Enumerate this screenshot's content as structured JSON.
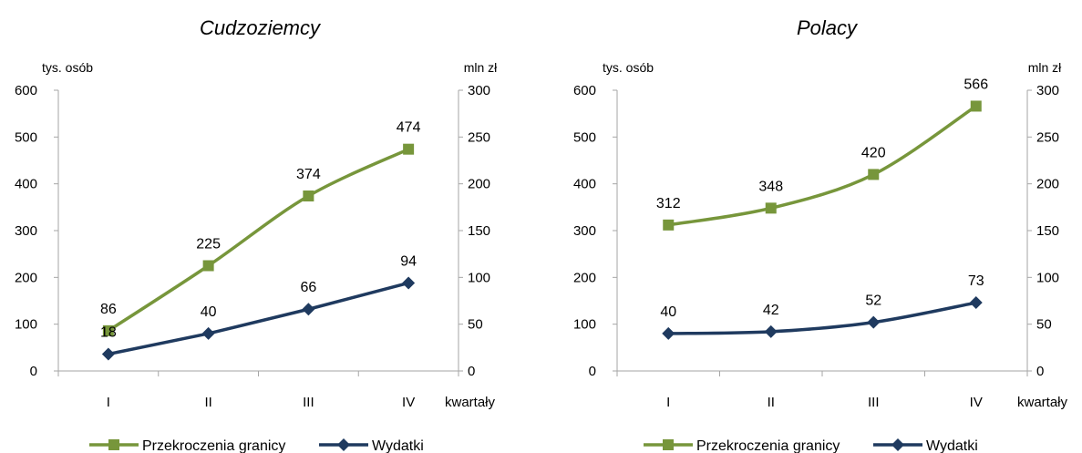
{
  "colors": {
    "border_crossings": "#77963B",
    "expenditures": "#1F3A5F",
    "axis": "#A6A6A6"
  },
  "chart_data": [
    {
      "type": "line",
      "title": "Cudzoziemcy",
      "ylabel_left": "tys. osób",
      "ylabel_right": "mln zł",
      "xlabel": "kwartały",
      "categories": [
        "I",
        "II",
        "III",
        "IV"
      ],
      "ylim_left": [
        0,
        600
      ],
      "yticks_left": [
        0,
        100,
        200,
        300,
        400,
        500,
        600
      ],
      "ylim_right": [
        0,
        300
      ],
      "yticks_right": [
        0,
        50,
        100,
        150,
        200,
        250,
        300
      ],
      "grid": false,
      "legend": "bottom",
      "series": [
        {
          "name": "Przekroczenia granicy",
          "axis": "left",
          "marker": "square",
          "smooth": true,
          "values": [
            86,
            225,
            374,
            474
          ],
          "labels": [
            "86",
            "225",
            "374",
            "474"
          ]
        },
        {
          "name": "Wydatki",
          "axis": "right",
          "marker": "diamond",
          "smooth": false,
          "values": [
            18,
            40,
            66,
            94
          ],
          "labels": [
            "18",
            "40",
            "66",
            "94"
          ]
        }
      ]
    },
    {
      "type": "line",
      "title": "Polacy",
      "ylabel_left": "tys. osób",
      "ylabel_right": "mln zł",
      "xlabel": "kwartały",
      "categories": [
        "I",
        "II",
        "III",
        "IV"
      ],
      "ylim_left": [
        0,
        600
      ],
      "yticks_left": [
        0,
        100,
        200,
        300,
        400,
        500,
        600
      ],
      "ylim_right": [
        0,
        300
      ],
      "yticks_right": [
        0,
        50,
        100,
        150,
        200,
        250,
        300
      ],
      "grid": false,
      "legend": "bottom",
      "series": [
        {
          "name": "Przekroczenia granicy",
          "axis": "left",
          "marker": "square",
          "smooth": true,
          "values": [
            312,
            348,
            420,
            566
          ],
          "labels": [
            "312",
            "348",
            "420",
            "566"
          ]
        },
        {
          "name": "Wydatki",
          "axis": "right",
          "marker": "diamond",
          "smooth": true,
          "values": [
            40,
            42,
            52,
            73
          ],
          "labels": [
            "40",
            "42",
            "52",
            "73"
          ]
        }
      ]
    }
  ]
}
